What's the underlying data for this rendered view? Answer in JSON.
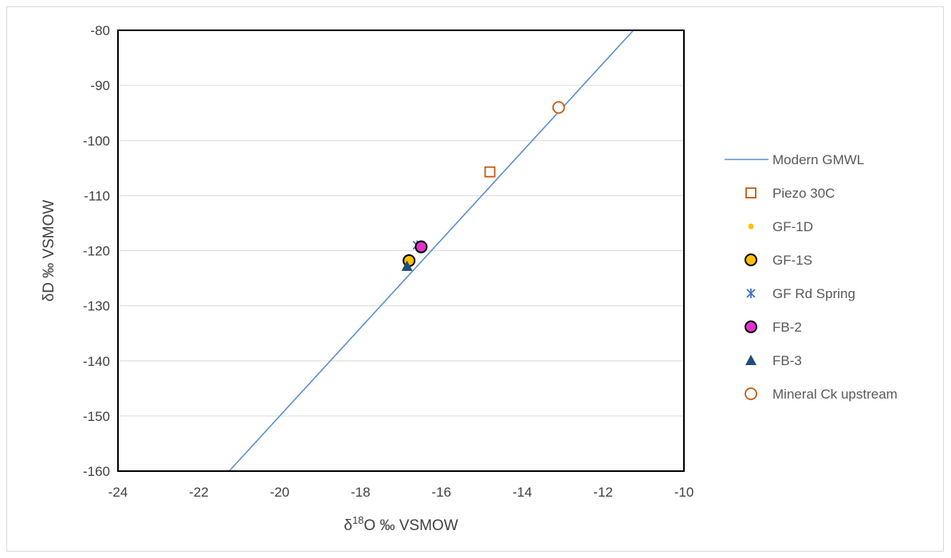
{
  "chart_data": {
    "type": "scatter",
    "title": "",
    "xlabel": {
      "prefix": "δ",
      "sup": "18",
      "rest": "O ‰ VSMOW"
    },
    "ylabel": "δD ‰ VSMOW",
    "xlim": [
      -24,
      -10
    ],
    "ylim": [
      -160,
      -80
    ],
    "x_ticks": [
      "-24",
      "-22",
      "-20",
      "-18",
      "-16",
      "-14",
      "-12",
      "-10"
    ],
    "y_ticks": [
      "-80",
      "-90",
      "-100",
      "-110",
      "-120",
      "-130",
      "-140",
      "-150",
      "-160"
    ],
    "grid": "horizontal",
    "legend_position": "right",
    "line": {
      "name": "Modern GMWL",
      "slope": 8,
      "intercept": 10,
      "x_range": [
        -21.25,
        -11.25
      ],
      "color": "#5b8fd0"
    },
    "series": [
      {
        "name": "Piezo 30C",
        "marker": "square-open",
        "color": "#c55a11",
        "points": [
          [
            -14.8,
            -105.7
          ]
        ]
      },
      {
        "name": "GF-1D",
        "marker": "dot-small",
        "color": "#ffc000",
        "points": [
          [
            -16.8,
            -121.5
          ]
        ]
      },
      {
        "name": "GF-1S",
        "marker": "circle-filled-outline",
        "color": "#ffc000",
        "points": [
          [
            -16.8,
            -121.8
          ]
        ]
      },
      {
        "name": "GF Rd Spring",
        "marker": "asterisk",
        "color": "#4472c4",
        "points": [
          [
            -16.6,
            -119.0
          ]
        ]
      },
      {
        "name": "FB-2",
        "marker": "circle-filled-outline",
        "color": "#e033cc",
        "points": [
          [
            -16.5,
            -119.3
          ]
        ]
      },
      {
        "name": "FB-3",
        "marker": "triangle",
        "color": "#1f4e79",
        "points": [
          [
            -16.85,
            -122.8
          ]
        ]
      },
      {
        "name": "Mineral Ck upstream",
        "marker": "circle-open",
        "color": "#c55a11",
        "points": [
          [
            -13.1,
            -94.0
          ]
        ]
      }
    ]
  }
}
